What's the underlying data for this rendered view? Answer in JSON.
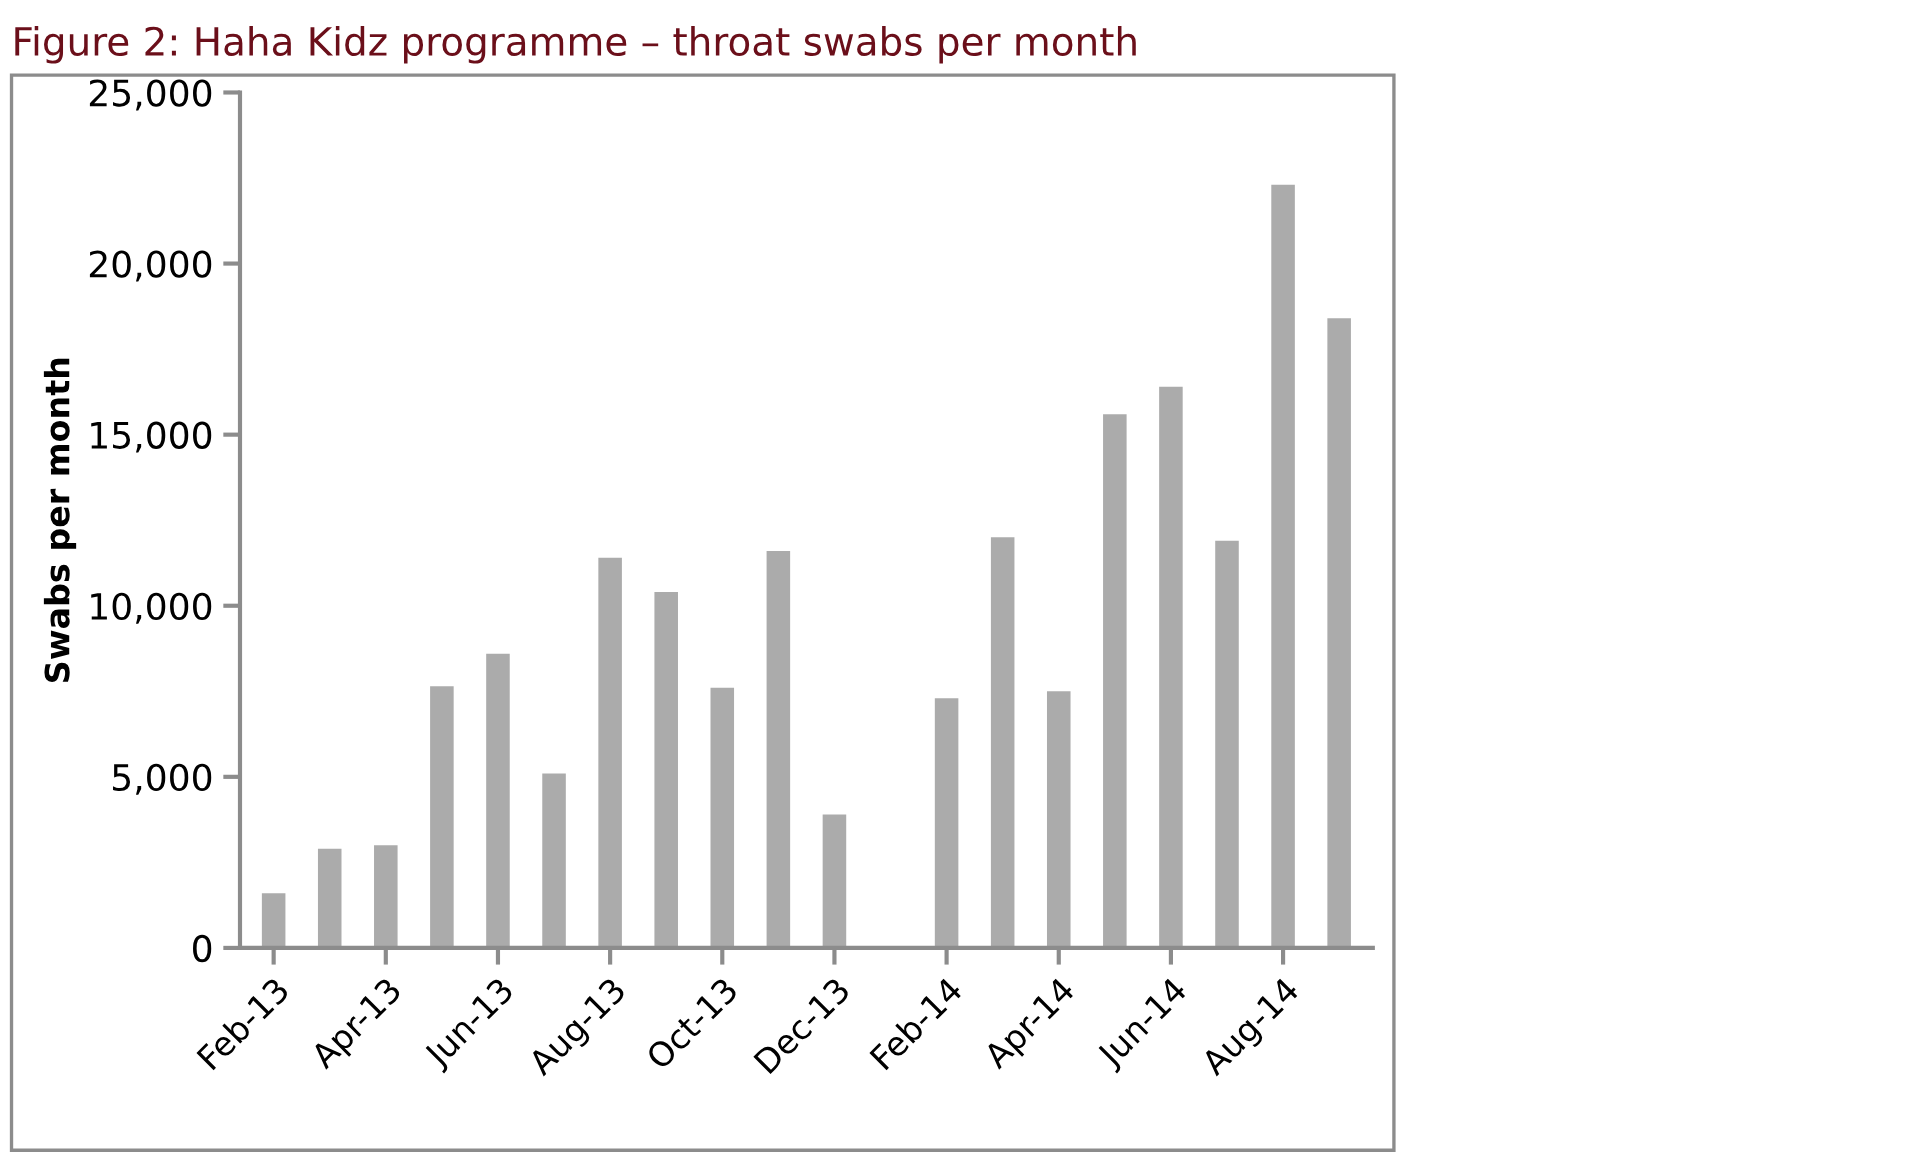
{
  "chart_data": {
    "type": "bar",
    "title": "Figure 2: Haha Kidz programme – throat swabs per month",
    "ylabel": "Swabs per month",
    "categories": [
      "Feb-13",
      null,
      "Apr-13",
      null,
      "Jun-13",
      null,
      "Aug-13",
      null,
      "Oct-13",
      null,
      "Dec-13",
      null,
      "Feb-14",
      null,
      "Apr-14",
      null,
      "Jun-14",
      null,
      "Aug-14",
      null
    ],
    "values": [
      1600,
      2900,
      3000,
      7650,
      8600,
      5100,
      11400,
      10400,
      7600,
      11600,
      3900,
      null,
      7300,
      12000,
      7500,
      15600,
      16400,
      11900,
      22300,
      18400
    ],
    "color": "#ababab",
    "ylim": [
      0,
      25000
    ],
    "yticks": [
      {
        "value": 0,
        "label": "0"
      },
      {
        "value": 5000,
        "label": "5,000"
      },
      {
        "value": 10000,
        "label": "10,000"
      },
      {
        "value": 15000,
        "label": "15,000"
      },
      {
        "value": 20000,
        "label": "20,000"
      },
      {
        "value": 25000,
        "label": "25,000"
      }
    ],
    "grid": false,
    "legend": false
  }
}
